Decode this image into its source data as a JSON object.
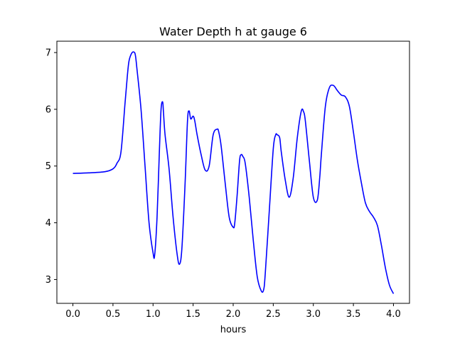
{
  "chart_data": {
    "type": "line",
    "title": "Water Depth h at gauge 6",
    "xlabel": "hours",
    "ylabel": "",
    "xlim": [
      -0.2,
      4.2
    ],
    "ylim": [
      2.58,
      7.2
    ],
    "xticks": [
      0.0,
      0.5,
      1.0,
      1.5,
      2.0,
      2.5,
      3.0,
      3.5,
      4.0
    ],
    "xtick_labels": [
      "0.0",
      "0.5",
      "1.0",
      "1.5",
      "2.0",
      "2.5",
      "3.0",
      "3.5",
      "4.0"
    ],
    "yticks": [
      3,
      4,
      5,
      6,
      7
    ],
    "ytick_labels": [
      "3",
      "4",
      "5",
      "6",
      "7"
    ],
    "grid": false,
    "series": [
      {
        "color": "#0000ff",
        "x": [
          0.0,
          0.2,
          0.4,
          0.5,
          0.55,
          0.6,
          0.65,
          0.68,
          0.7,
          0.73,
          0.76,
          0.78,
          0.8,
          0.85,
          0.9,
          0.95,
          1.0,
          1.02,
          1.05,
          1.08,
          1.1,
          1.12,
          1.13,
          1.15,
          1.2,
          1.25,
          1.3,
          1.33,
          1.36,
          1.4,
          1.43,
          1.45,
          1.47,
          1.5,
          1.52,
          1.55,
          1.6,
          1.65,
          1.7,
          1.75,
          1.8,
          1.82,
          1.85,
          1.9,
          1.95,
          2.0,
          2.02,
          2.05,
          2.08,
          2.1,
          2.12,
          2.15,
          2.2,
          2.25,
          2.3,
          2.35,
          2.38,
          2.4,
          2.45,
          2.5,
          2.53,
          2.55,
          2.58,
          2.6,
          2.65,
          2.7,
          2.75,
          2.8,
          2.85,
          2.88,
          2.9,
          2.95,
          3.0,
          3.05,
          3.08,
          3.1,
          3.15,
          3.2,
          3.25,
          3.3,
          3.35,
          3.4,
          3.45,
          3.5,
          3.55,
          3.6,
          3.65,
          3.7,
          3.75,
          3.8,
          3.85,
          3.9,
          3.95,
          4.0
        ],
        "y": [
          4.87,
          4.88,
          4.9,
          4.95,
          5.05,
          5.25,
          6.1,
          6.6,
          6.85,
          6.98,
          7.01,
          6.95,
          6.7,
          6.0,
          5.0,
          4.0,
          3.47,
          3.43,
          4.1,
          5.3,
          6.0,
          6.13,
          5.95,
          5.55,
          4.95,
          4.1,
          3.45,
          3.27,
          3.55,
          4.7,
          5.8,
          5.97,
          5.83,
          5.88,
          5.8,
          5.55,
          5.2,
          4.93,
          5.0,
          5.55,
          5.65,
          5.6,
          5.35,
          4.7,
          4.1,
          3.92,
          4.0,
          4.5,
          5.1,
          5.2,
          5.17,
          5.05,
          4.45,
          3.7,
          3.05,
          2.8,
          2.82,
          3.1,
          4.2,
          5.3,
          5.55,
          5.55,
          5.5,
          5.25,
          4.75,
          4.45,
          4.8,
          5.5,
          5.97,
          5.95,
          5.8,
          5.1,
          4.45,
          4.4,
          4.8,
          5.2,
          6.05,
          6.38,
          6.42,
          6.33,
          6.25,
          6.22,
          6.05,
          5.6,
          5.1,
          4.7,
          4.35,
          4.2,
          4.1,
          3.95,
          3.6,
          3.2,
          2.9,
          2.75
        ]
      }
    ]
  }
}
